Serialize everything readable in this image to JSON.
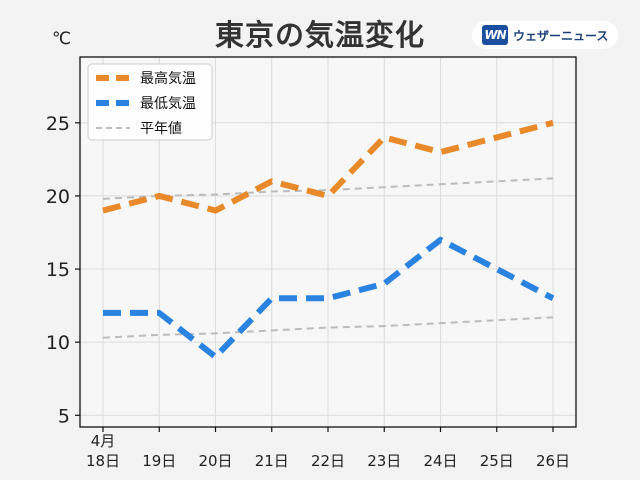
{
  "header": {
    "title": "東京の気温変化",
    "brand_logo_text": "WN",
    "brand_name": "ウェザーニュース"
  },
  "colors": {
    "max": "#e8892a",
    "min": "#2a83e0",
    "normal": "#bcbcbc",
    "plot_bg": "#f7f7f7",
    "page_bg": "#f3f3f3"
  },
  "chart_data": {
    "type": "line",
    "title": "東京の気温変化",
    "xlabel": "",
    "ylabel": "℃",
    "ylim": [
      4.2,
      29.5
    ],
    "yticks": [
      5,
      10,
      15,
      20,
      25
    ],
    "categories": [
      "18日",
      "19日",
      "20日",
      "21日",
      "22日",
      "23日",
      "24日",
      "25日",
      "26日"
    ],
    "month_label": "4月",
    "grid": true,
    "legend_position": "top-left",
    "series": [
      {
        "name": "最高気温",
        "style": "dashed-thick",
        "color": "#e8892a",
        "values": [
          19,
          20,
          19,
          21,
          20,
          24,
          23,
          24,
          25
        ]
      },
      {
        "name": "最低気温",
        "style": "dashed-thick",
        "color": "#2a83e0",
        "values": [
          12,
          12,
          9,
          13,
          13,
          14,
          17,
          15,
          13
        ]
      },
      {
        "name": "平年値",
        "style": "dashed-thin",
        "color": "#bcbcbc",
        "values": [
          19.8,
          20.0,
          20.1,
          20.3,
          20.4,
          20.6,
          20.8,
          21.0,
          21.2
        ]
      },
      {
        "name": "平年値",
        "style": "dashed-thin",
        "color": "#bcbcbc",
        "in_legend": false,
        "values": [
          10.3,
          10.5,
          10.6,
          10.8,
          11.0,
          11.1,
          11.3,
          11.5,
          11.7
        ]
      }
    ]
  }
}
